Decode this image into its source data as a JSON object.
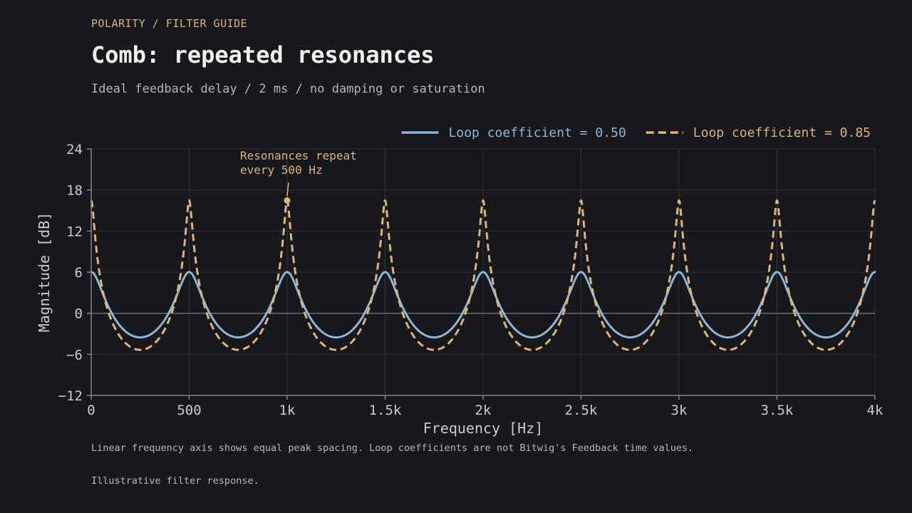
{
  "header": {
    "eyebrow": "POLARITY / FILTER GUIDE",
    "title": "Comb: repeated resonances",
    "subtitle": "Ideal feedback delay / 2 ms / no damping or saturation"
  },
  "footer": {
    "note": "Linear frequency axis shows equal peak spacing. Loop coefficients are not Bitwig's Feedback time values.",
    "credit": "Illustrative filter response."
  },
  "colors": {
    "background": "#16181c",
    "series_a": "#8fb4d6",
    "series_b": "#ddb478",
    "grid": "#2f3339",
    "axis": "#80858c",
    "zero_line": "#6c7178",
    "tick_text": "#c8ccd0"
  },
  "chart_data": {
    "type": "line",
    "xlabel": "Frequency [Hz]",
    "ylabel": "Magnitude [dB]",
    "xlim": [
      0,
      4000
    ],
    "ylim": [
      -12,
      24
    ],
    "x_ticks": [
      0,
      500,
      1000,
      1500,
      2000,
      2500,
      3000,
      3500,
      4000
    ],
    "x_tick_labels": [
      "0",
      "500",
      "1k",
      "1.5k",
      "2k",
      "2.5k",
      "3k",
      "3.5k",
      "4k"
    ],
    "y_ticks": [
      -12,
      -6,
      0,
      6,
      12,
      18,
      24
    ],
    "y_tick_labels": [
      "−12",
      "−6",
      "0",
      "6",
      "12",
      "18",
      "24"
    ],
    "grid": true,
    "legend_position": "top-right",
    "delay_ms": 2,
    "series": [
      {
        "name": "Loop coefficient = 0.50",
        "coefficient": 0.5,
        "style": "solid",
        "peak_db": 6.02,
        "trough_db": -3.52,
        "color": "#8fb4d6"
      },
      {
        "name": "Loop coefficient = 0.85",
        "coefficient": 0.85,
        "style": "dashed",
        "peak_db": 16.48,
        "trough_db": -5.36,
        "color": "#ddb478"
      }
    ],
    "annotation": {
      "text_lines": [
        "Resonances repeat",
        "every 500 Hz"
      ],
      "x": 1000,
      "y": 16.48
    }
  }
}
